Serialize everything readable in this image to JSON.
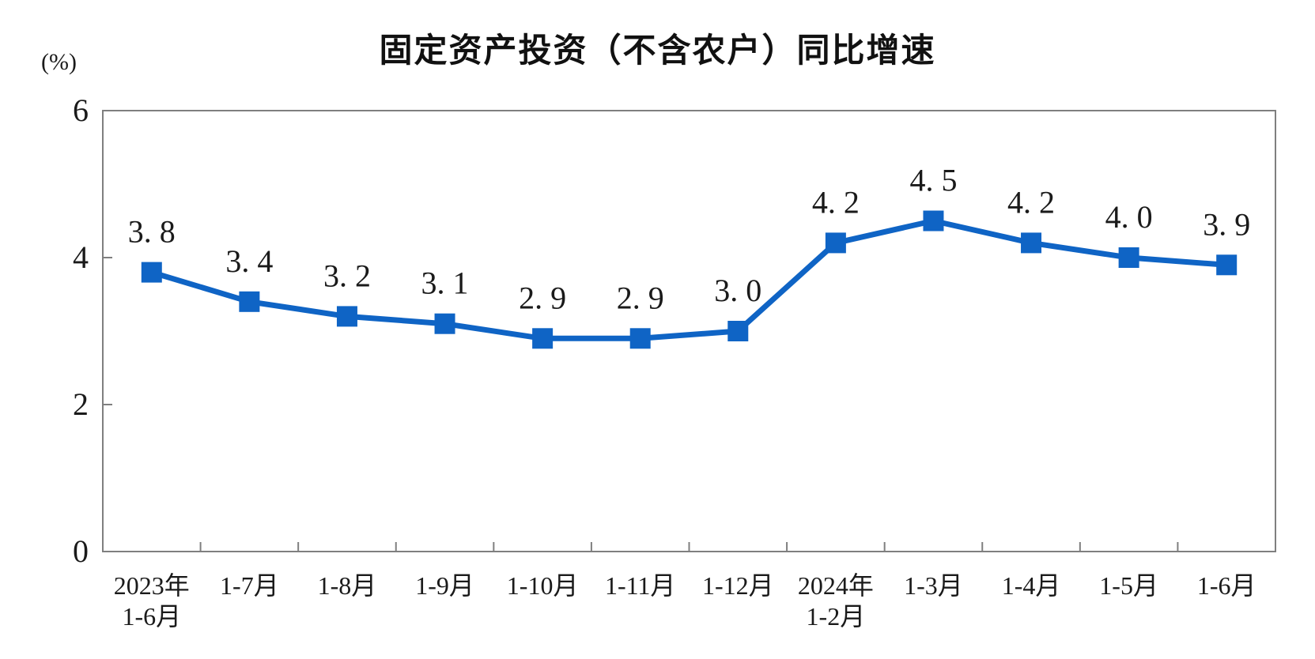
{
  "page": {
    "background": "#ffffff"
  },
  "chart_data": {
    "type": "line",
    "title": "固定资产投资（不含农户）同比增速",
    "unit_label": "(%)",
    "categories": [
      "2023年\n1-6月",
      "1-7月",
      "1-8月",
      "1-9月",
      "1-10月",
      "1-11月",
      "1-12月",
      "2024年\n1-2月",
      "1-3月",
      "1-4月",
      "1-5月",
      "1-6月"
    ],
    "values": [
      3.8,
      3.4,
      3.2,
      3.1,
      2.9,
      2.9,
      3.0,
      4.2,
      4.5,
      4.2,
      4.0,
      3.9
    ],
    "value_labels": [
      "3. 8",
      "3. 4",
      "3. 2",
      "3. 1",
      "2. 9",
      "2. 9",
      "3. 0",
      "4. 2",
      "4. 5",
      "4. 2",
      "4. 0",
      "3. 9"
    ],
    "ylim": [
      0,
      6
    ],
    "yticks": [
      0,
      2,
      4,
      6
    ],
    "xlabel": "",
    "ylabel": "(%)",
    "grid": false,
    "legend": "none",
    "marker": "square",
    "series_color": "#0F64C5",
    "axis_color": "#7f7f7f",
    "text_color": "#1a1a1a"
  }
}
